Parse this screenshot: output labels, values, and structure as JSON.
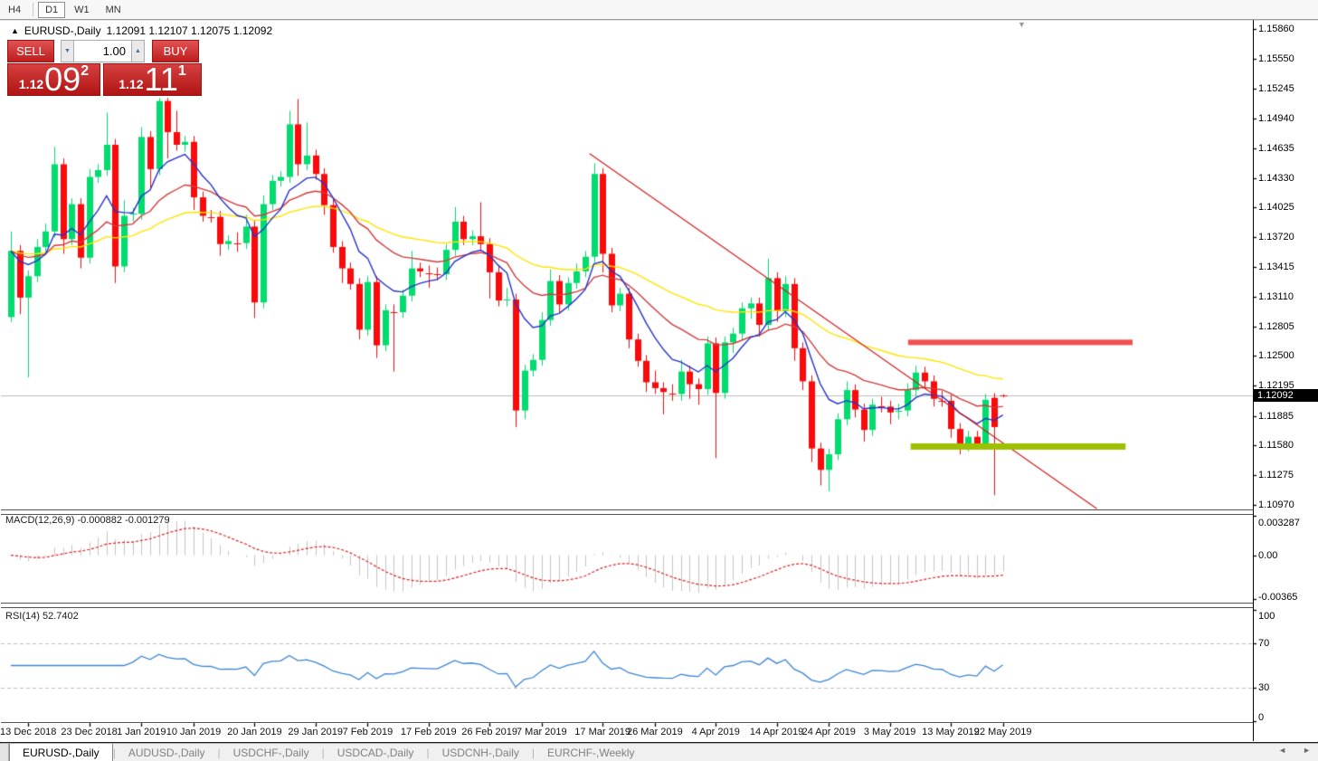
{
  "toolbar": {
    "timeframes": [
      "H4",
      "D1",
      "W1",
      "MN"
    ],
    "active_timeframe": "D1"
  },
  "chart_header": {
    "symbol": "EURUSD-,Daily",
    "ohlc_text": "1.12091 1.12107 1.12075 1.12092"
  },
  "icons": {
    "symbol_marker": "▲",
    "chart_shift": "▼",
    "volume_up": "▲",
    "volume_down": "▼",
    "scroll_left": "◄",
    "scroll_right": "►"
  },
  "trade_panel": {
    "sell_label": "SELL",
    "buy_label": "BUY",
    "volume": "1.00",
    "sell_price": {
      "prefix": "1.12",
      "big": "09",
      "sup": "2"
    },
    "buy_price": {
      "prefix": "1.12",
      "big": "11",
      "sup": "1"
    }
  },
  "price_axis": {
    "labels": [
      "1.15860",
      "1.15550",
      "1.15245",
      "1.14940",
      "1.14635",
      "1.14330",
      "1.14025",
      "1.13720",
      "1.13415",
      "1.13110",
      "1.12805",
      "1.12500",
      "1.12195",
      "1.11885",
      "1.11580",
      "1.11275",
      "1.10970"
    ],
    "current_price": "1.12092"
  },
  "macd_panel": {
    "label": "MACD(12,26,9) -0.000882 -0.001279",
    "axis": [
      {
        "text": "0.003287",
        "v": 0.003287
      },
      {
        "text": "0.00",
        "v": 0
      },
      {
        "text": "-0.00365",
        "v": -0.00365
      }
    ]
  },
  "rsi_panel": {
    "label": "RSI(14) 52.7402",
    "axis": [
      {
        "text": "100",
        "v": 100
      },
      {
        "text": "70",
        "v": 70
      },
      {
        "text": "30",
        "v": 30
      },
      {
        "text": "0",
        "v": 0
      }
    ],
    "levels": [
      70,
      30
    ]
  },
  "tabs": [
    {
      "label": "EURUSD-,Daily",
      "active": true
    },
    {
      "label": "AUDUSD-,Daily",
      "active": false
    },
    {
      "label": "USDCHF-,Daily",
      "active": false
    },
    {
      "label": "USDCAD-,Daily",
      "active": false
    },
    {
      "label": "USDCNH-,Daily",
      "active": false
    },
    {
      "label": "EURCHF-,Weekly",
      "active": false
    }
  ],
  "colors": {
    "bull": "#00dc6e",
    "bear": "#fa0a0a",
    "ma_fast": "#2233cc",
    "ma_mid": "#d23b3b",
    "ma_slow": "#ffe400",
    "macd_hist": "#c4c4c4",
    "macd_signal": "#dd2222",
    "rsi_line": "#3d85d6",
    "level_dash": "#c0c0c0",
    "trendline": "#d02020",
    "resistance": "#f25050",
    "support": "#9dc100",
    "current_price_line": "#bdbdbd"
  },
  "chart_data": {
    "type": "candlestick",
    "symbol": "EURUSD-,Daily",
    "timeframe": "Daily",
    "price_range": {
      "top": 1.1586,
      "bottom": 1.1097
    },
    "moving_averages": [
      {
        "name": "fast",
        "period": 8
      },
      {
        "name": "mid",
        "period": 20
      },
      {
        "name": "slow",
        "period": 45
      }
    ],
    "indicators": {
      "macd": {
        "fast": 12,
        "slow": 26,
        "signal": 9,
        "value": -0.000882,
        "signal_value": -0.001279,
        "scale_max": 0.003287,
        "scale_min": -0.00365
      },
      "rsi": {
        "period": 14,
        "value": 52.7402,
        "scale": [
          0,
          100
        ],
        "levels": [
          30,
          70
        ]
      }
    },
    "objects": {
      "trendline": {
        "i1": 66.5,
        "p1": 1.1458,
        "i2": 124.8,
        "p2": 1.1093
      },
      "resistance": {
        "price": 1.1264,
        "i1": 103.1,
        "i2": 128.9,
        "thickness": 6
      },
      "support": {
        "price": 1.1157,
        "i1": 103.4,
        "i2": 128.1,
        "thickness": 7
      }
    },
    "date_labels": [
      {
        "text": "13 Dec 2018",
        "i": 2
      },
      {
        "text": "23 Dec 2018",
        "i": 9
      },
      {
        "text": "1 Jan 2019",
        "i": 15
      },
      {
        "text": "10 Jan 2019",
        "i": 21
      },
      {
        "text": "20 Jan 2019",
        "i": 28
      },
      {
        "text": "29 Jan 2019",
        "i": 35
      },
      {
        "text": "7 Feb 2019",
        "i": 41
      },
      {
        "text": "17 Feb 2019",
        "i": 48
      },
      {
        "text": "26 Feb 2019",
        "i": 55
      },
      {
        "text": "7 Mar 2019",
        "i": 61
      },
      {
        "text": "17 Mar 2019",
        "i": 68
      },
      {
        "text": "26 Mar 2019",
        "i": 74
      },
      {
        "text": "4 Apr 2019",
        "i": 81
      },
      {
        "text": "14 Apr 2019",
        "i": 88
      },
      {
        "text": "24 Apr 2019",
        "i": 94
      },
      {
        "text": "3 May 2019",
        "i": 101
      },
      {
        "text": "13 May 2019",
        "i": 108
      },
      {
        "text": "22 May 2019",
        "i": 114
      }
    ],
    "candles": [
      [
        1.129,
        1.1378,
        1.1285,
        1.1358
      ],
      [
        1.1358,
        1.1364,
        1.1293,
        1.131
      ],
      [
        1.131,
        1.1338,
        1.1228,
        1.1332
      ],
      [
        1.1332,
        1.137,
        1.1326,
        1.1362
      ],
      [
        1.1362,
        1.1386,
        1.1356,
        1.1378
      ],
      [
        1.1378,
        1.1465,
        1.1372,
        1.1447
      ],
      [
        1.1447,
        1.1453,
        1.1355,
        1.137
      ],
      [
        1.137,
        1.1412,
        1.1364,
        1.1406
      ],
      [
        1.1406,
        1.1412,
        1.134,
        1.1351
      ],
      [
        1.1351,
        1.1442,
        1.1345,
        1.1434
      ],
      [
        1.1434,
        1.1447,
        1.1428,
        1.1441
      ],
      [
        1.1441,
        1.15,
        1.1435,
        1.1467
      ],
      [
        1.1467,
        1.1473,
        1.1325,
        1.1342
      ],
      [
        1.1342,
        1.141,
        1.1336,
        1.1394
      ],
      [
        1.1394,
        1.1402,
        1.1388,
        1.1396
      ],
      [
        1.1396,
        1.1485,
        1.139,
        1.1475
      ],
      [
        1.1475,
        1.1481,
        1.1422,
        1.1442
      ],
      [
        1.1442,
        1.1515,
        1.1436,
        1.1512
      ],
      [
        1.1512,
        1.1515,
        1.1453,
        1.148
      ],
      [
        1.148,
        1.1502,
        1.1461,
        1.1467
      ],
      [
        1.1467,
        1.1476,
        1.146,
        1.147
      ],
      [
        1.147,
        1.1476,
        1.14,
        1.1413
      ],
      [
        1.1413,
        1.1419,
        1.1388,
        1.1394
      ],
      [
        1.1394,
        1.14,
        1.1387,
        1.1393
      ],
      [
        1.1393,
        1.1399,
        1.1353,
        1.1365
      ],
      [
        1.1365,
        1.1374,
        1.1359,
        1.1368
      ],
      [
        1.1368,
        1.1377,
        1.1357,
        1.1366
      ],
      [
        1.1366,
        1.1395,
        1.136,
        1.1383
      ],
      [
        1.1383,
        1.1389,
        1.1289,
        1.1305
      ],
      [
        1.1305,
        1.1415,
        1.1299,
        1.1406
      ],
      [
        1.1406,
        1.1436,
        1.14,
        1.143
      ],
      [
        1.143,
        1.144,
        1.1424,
        1.1434
      ],
      [
        1.1434,
        1.1502,
        1.1428,
        1.1488
      ],
      [
        1.1488,
        1.1514,
        1.1435,
        1.1447
      ],
      [
        1.1447,
        1.149,
        1.1441,
        1.1456
      ],
      [
        1.1456,
        1.1462,
        1.1431,
        1.1437
      ],
      [
        1.1437,
        1.1443,
        1.1395,
        1.1405
      ],
      [
        1.1405,
        1.1411,
        1.1356,
        1.1362
      ],
      [
        1.1362,
        1.1368,
        1.1325,
        1.134
      ],
      [
        1.134,
        1.1346,
        1.1318,
        1.1324
      ],
      [
        1.1324,
        1.133,
        1.1267,
        1.1277
      ],
      [
        1.1277,
        1.1332,
        1.1271,
        1.1326
      ],
      [
        1.1326,
        1.1332,
        1.1248,
        1.1261
      ],
      [
        1.1261,
        1.1303,
        1.1255,
        1.1297
      ],
      [
        1.1297,
        1.1303,
        1.1234,
        1.1295
      ],
      [
        1.1295,
        1.1318,
        1.1289,
        1.1312
      ],
      [
        1.1312,
        1.1358,
        1.1306,
        1.134
      ],
      [
        1.134,
        1.1346,
        1.1331,
        1.1337
      ],
      [
        1.1337,
        1.1343,
        1.132,
        1.1335
      ],
      [
        1.1335,
        1.1341,
        1.1328,
        1.1334
      ],
      [
        1.1334,
        1.1365,
        1.1328,
        1.1359
      ],
      [
        1.1359,
        1.1403,
        1.1353,
        1.1388
      ],
      [
        1.1388,
        1.1394,
        1.1364,
        1.137
      ],
      [
        1.137,
        1.1379,
        1.1364,
        1.1373
      ],
      [
        1.1373,
        1.1408,
        1.1359,
        1.1365
      ],
      [
        1.1365,
        1.1371,
        1.1309,
        1.1336
      ],
      [
        1.1336,
        1.1342,
        1.1301,
        1.1307
      ],
      [
        1.1307,
        1.132,
        1.1301,
        1.1308
      ],
      [
        1.1308,
        1.1314,
        1.1177,
        1.1194
      ],
      [
        1.1194,
        1.1241,
        1.1185,
        1.1235
      ],
      [
        1.1235,
        1.1252,
        1.1229,
        1.1246
      ],
      [
        1.1246,
        1.1295,
        1.124,
        1.1287
      ],
      [
        1.1287,
        1.1339,
        1.1281,
        1.1327
      ],
      [
        1.1327,
        1.1333,
        1.1294,
        1.1303
      ],
      [
        1.1303,
        1.1331,
        1.1297,
        1.1325
      ],
      [
        1.1325,
        1.1345,
        1.1319,
        1.1337
      ],
      [
        1.1337,
        1.1358,
        1.1331,
        1.1352
      ],
      [
        1.1352,
        1.1448,
        1.1346,
        1.1437
      ],
      [
        1.1437,
        1.1443,
        1.1336,
        1.1355
      ],
      [
        1.1355,
        1.1361,
        1.1295,
        1.1302
      ],
      [
        1.1302,
        1.132,
        1.1296,
        1.1314
      ],
      [
        1.1314,
        1.132,
        1.1258,
        1.1267
      ],
      [
        1.1267,
        1.1273,
        1.1239,
        1.1245
      ],
      [
        1.1245,
        1.1251,
        1.1213,
        1.1223
      ],
      [
        1.1223,
        1.1235,
        1.1211,
        1.1217
      ],
      [
        1.1217,
        1.1223,
        1.119,
        1.1213
      ],
      [
        1.1213,
        1.1221,
        1.1204,
        1.1211
      ],
      [
        1.1211,
        1.1246,
        1.1204,
        1.1234
      ],
      [
        1.1234,
        1.124,
        1.1206,
        1.1221
      ],
      [
        1.1221,
        1.1227,
        1.12,
        1.1216
      ],
      [
        1.1216,
        1.127,
        1.121,
        1.1263
      ],
      [
        1.1263,
        1.1269,
        1.1145,
        1.1212
      ],
      [
        1.1212,
        1.127,
        1.1206,
        1.1264
      ],
      [
        1.1264,
        1.1279,
        1.1253,
        1.1273
      ],
      [
        1.1273,
        1.1305,
        1.1267,
        1.1299
      ],
      [
        1.1299,
        1.131,
        1.1288,
        1.1304
      ],
      [
        1.1304,
        1.131,
        1.127,
        1.1282
      ],
      [
        1.1282,
        1.135,
        1.1276,
        1.133
      ],
      [
        1.133,
        1.1336,
        1.1285,
        1.1296
      ],
      [
        1.1296,
        1.1332,
        1.129,
        1.1324
      ],
      [
        1.1324,
        1.133,
        1.1245,
        1.1258
      ],
      [
        1.1258,
        1.1264,
        1.1215,
        1.1224
      ],
      [
        1.1224,
        1.123,
        1.1141,
        1.1155
      ],
      [
        1.1155,
        1.1161,
        1.1117,
        1.1133
      ],
      [
        1.1133,
        1.1155,
        1.1111,
        1.1149
      ],
      [
        1.1149,
        1.1191,
        1.1143,
        1.1185
      ],
      [
        1.1185,
        1.1224,
        1.1179,
        1.1215
      ],
      [
        1.1215,
        1.1221,
        1.1187,
        1.1195
      ],
      [
        1.1195,
        1.1201,
        1.1162,
        1.1174
      ],
      [
        1.1174,
        1.1206,
        1.1168,
        1.12
      ],
      [
        1.12,
        1.1208,
        1.1192,
        1.1198
      ],
      [
        1.1198,
        1.1204,
        1.118,
        1.1192
      ],
      [
        1.1192,
        1.1201,
        1.1185,
        1.1194
      ],
      [
        1.1194,
        1.1222,
        1.1188,
        1.1215
      ],
      [
        1.1215,
        1.124,
        1.1209,
        1.1233
      ],
      [
        1.1233,
        1.1239,
        1.1216,
        1.1224
      ],
      [
        1.1224,
        1.123,
        1.1198,
        1.1206
      ],
      [
        1.1206,
        1.1214,
        1.1198,
        1.1204
      ],
      [
        1.1204,
        1.121,
        1.1166,
        1.1175
      ],
      [
        1.1175,
        1.1181,
        1.1149,
        1.1158
      ],
      [
        1.1158,
        1.1173,
        1.1152,
        1.1167
      ],
      [
        1.1167,
        1.1173,
        1.1154,
        1.116
      ],
      [
        1.116,
        1.1211,
        1.1154,
        1.1205
      ],
      [
        1.1207,
        1.1212,
        1.1107,
        1.1177
      ],
      [
        1.12093,
        1.12107,
        1.12075,
        1.12092
      ]
    ]
  }
}
